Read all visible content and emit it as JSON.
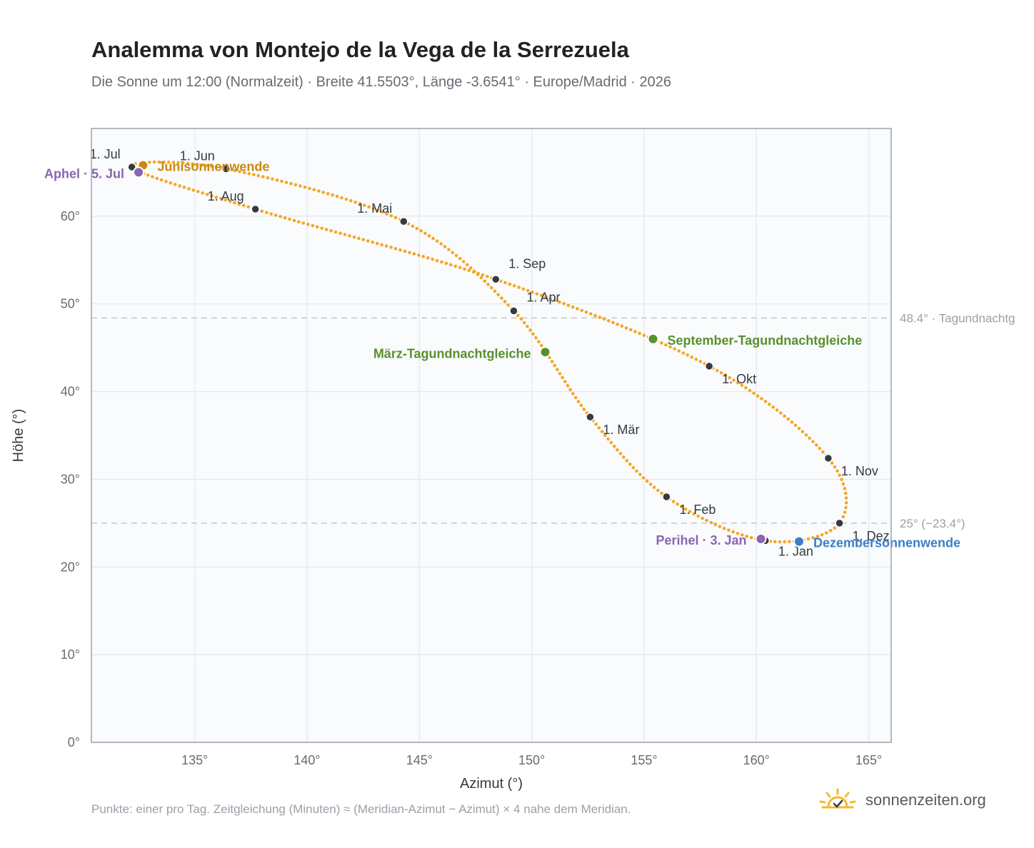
{
  "header": {
    "title": "Analemma von Montejo de la Vega de la Serrezuela",
    "subtitle": "Die Sonne um 12:00 (Normalzeit) · Breite 41.5503°, Länge -3.6541° · Europe/Madrid · 2026"
  },
  "footer": {
    "note": "Punkte: einer pro Tag. Zeitgleichung (Minuten) ≈ (Meridian-Azimut − Azimut) × 4 nahe dem Meridian.",
    "brand": "sonnenzeiten.org",
    "brand_icon": "sun-check-icon"
  },
  "chart_data": {
    "type": "scatter",
    "xlabel": "Azimut (°)",
    "ylabel": "Höhe (°)",
    "xlim": [
      130.4,
      166.0
    ],
    "ylim": [
      0,
      70
    ],
    "xticks": [
      135,
      140,
      145,
      150,
      155,
      160,
      165
    ],
    "xtick_labels": [
      "135°",
      "140°",
      "145°",
      "150°",
      "155°",
      "160°",
      "165°"
    ],
    "yticks": [
      0,
      10,
      20,
      30,
      40,
      50,
      60
    ],
    "ytick_labels": [
      "0°",
      "10°",
      "20°",
      "30°",
      "40°",
      "50°",
      "60°"
    ],
    "grid": true,
    "colors": {
      "curve": "#f5a623",
      "month_marker": "#343a40",
      "equinox": "#5a8f2e",
      "june_solstice": "#c98a12",
      "december_solstice": "#3b7fc4",
      "apsis": "#8a65b0",
      "reference_line": "#c2c7ce",
      "plot_background": "#f9fbfd",
      "frame": "#9aa3ad"
    },
    "reference_lines": [
      {
        "y": 48.4,
        "label": "48.4° · Tagundnachtg"
      },
      {
        "y": 25.0,
        "label": "25° (−23.4°)"
      }
    ],
    "months": [
      {
        "label": "1. Jan",
        "az": 160.4,
        "alt": 23.0
      },
      {
        "label": "1. Feb",
        "az": 156.0,
        "alt": 28.0
      },
      {
        "label": "1. Mär",
        "az": 152.6,
        "alt": 37.1
      },
      {
        "label": "1. Apr",
        "az": 149.2,
        "alt": 49.2
      },
      {
        "label": "1. Mai",
        "az": 144.3,
        "alt": 59.4
      },
      {
        "label": "1. Jun",
        "az": 136.4,
        "alt": 65.4
      },
      {
        "label": "1. Jul",
        "az": 132.2,
        "alt": 65.6
      },
      {
        "label": "1. Aug",
        "az": 137.7,
        "alt": 60.8
      },
      {
        "label": "1. Sep",
        "az": 148.4,
        "alt": 52.8
      },
      {
        "label": "1. Okt",
        "az": 157.9,
        "alt": 42.9
      },
      {
        "label": "1. Nov",
        "az": 163.2,
        "alt": 32.4
      },
      {
        "label": "1. Dez",
        "az": 163.7,
        "alt": 25.0
      }
    ],
    "events": [
      {
        "label": "März-Tagundnachtgleiche",
        "az": 150.6,
        "alt": 44.5,
        "kind": "equinox"
      },
      {
        "label": "September-Tagundnachtgleiche",
        "az": 155.4,
        "alt": 46.0,
        "kind": "equinox"
      },
      {
        "label": "Junisonnenwende",
        "az": 132.7,
        "alt": 65.8,
        "kind": "june_solstice"
      },
      {
        "label": "Dezembersonnenwende",
        "az": 161.9,
        "alt": 22.9,
        "kind": "december_solstice"
      },
      {
        "label": "Aphel · 5. Jul",
        "az": 132.5,
        "alt": 65.0,
        "kind": "apsis"
      },
      {
        "label": "Perihel · 3. Jan",
        "az": 160.2,
        "alt": 23.2,
        "kind": "apsis"
      }
    ]
  }
}
